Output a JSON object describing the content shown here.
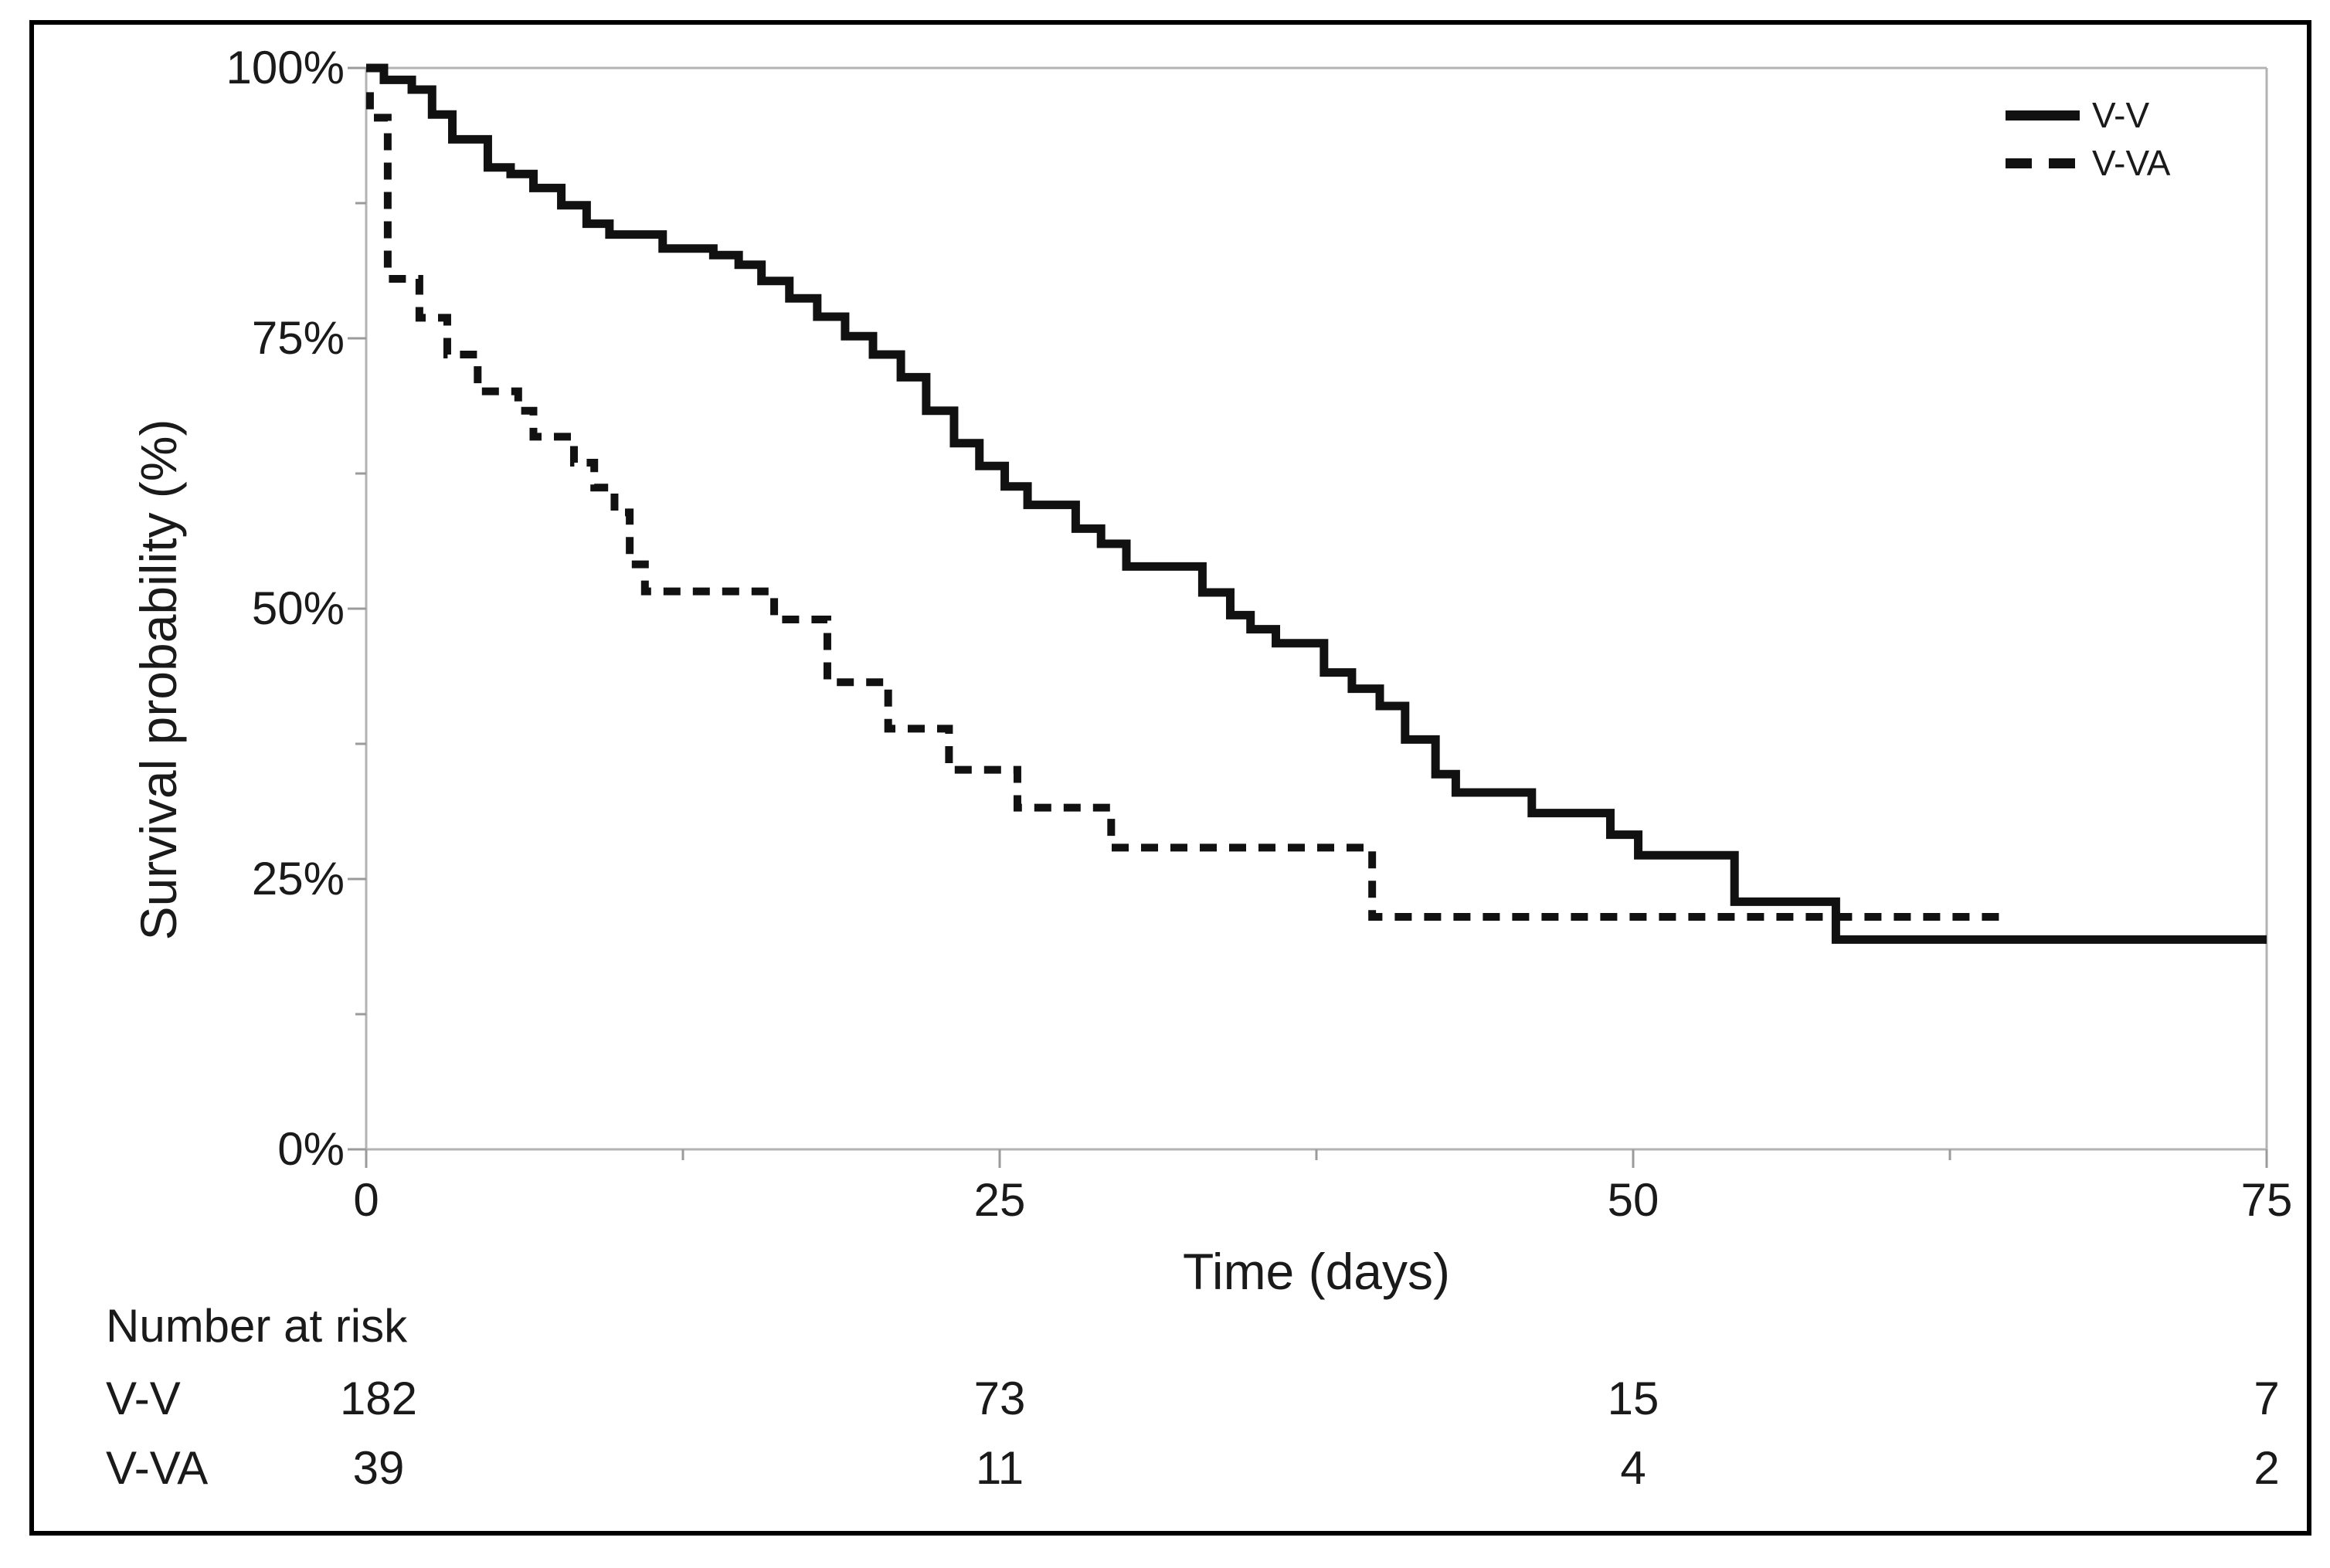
{
  "figure": {
    "background_color": "#ffffff",
    "border_color": "#000000",
    "text_color": "#1a1a1a",
    "axis_color": "#b3b3b3",
    "tick_color": "#9b9b9b",
    "curve_color": "#111111"
  },
  "chart_data": {
    "type": "line",
    "subtype": "kaplan-meier-step",
    "title": "",
    "xlabel": "Time (days)",
    "ylabel": "Survival probability (%)",
    "xlim": [
      0,
      75
    ],
    "ylim": [
      0,
      100
    ],
    "x_ticks": [
      0,
      25,
      50,
      75
    ],
    "x_tick_labels": [
      "0",
      "25",
      "50",
      "75"
    ],
    "x_minor_ticks": [
      12.5,
      37.5,
      62.5
    ],
    "y_ticks": [
      0,
      25,
      50,
      75,
      100
    ],
    "y_tick_labels": [
      "0%",
      "25%",
      "50%",
      "75%",
      "100%"
    ],
    "y_minor_ticks": [
      12.5,
      37.5,
      62.5,
      87.5
    ],
    "grid": "top gridline only, plot framed top/right, no inner grid",
    "legend_position": "top-right",
    "series": [
      {
        "name": "V-V",
        "style": "solid",
        "points": [
          [
            0,
            100
          ],
          [
            0.7,
            98.9
          ],
          [
            1.8,
            98.0
          ],
          [
            2.6,
            95.7
          ],
          [
            3.4,
            93.4
          ],
          [
            4.8,
            90.8
          ],
          [
            5.7,
            90.2
          ],
          [
            6.6,
            88.9
          ],
          [
            7.7,
            87.3
          ],
          [
            8.7,
            85.6
          ],
          [
            9.6,
            84.6
          ],
          [
            11.7,
            83.3
          ],
          [
            13.7,
            82.7
          ],
          [
            14.7,
            81.8
          ],
          [
            15.6,
            80.3
          ],
          [
            16.7,
            78.7
          ],
          [
            17.8,
            77.0
          ],
          [
            18.9,
            75.2
          ],
          [
            20.0,
            73.5
          ],
          [
            21.1,
            71.4
          ],
          [
            22.1,
            68.3
          ],
          [
            23.2,
            65.3
          ],
          [
            24.2,
            63.2
          ],
          [
            25.2,
            61.3
          ],
          [
            26.1,
            59.6
          ],
          [
            28.0,
            57.4
          ],
          [
            29.0,
            56.0
          ],
          [
            30.0,
            53.9
          ],
          [
            33.0,
            51.5
          ],
          [
            34.1,
            49.4
          ],
          [
            34.9,
            48.1
          ],
          [
            35.9,
            46.8
          ],
          [
            37.8,
            44.1
          ],
          [
            38.9,
            42.6
          ],
          [
            40.0,
            41.0
          ],
          [
            41.0,
            37.9
          ],
          [
            42.2,
            34.7
          ],
          [
            43.0,
            33.0
          ],
          [
            46.0,
            31.1
          ],
          [
            49.1,
            29.1
          ],
          [
            50.2,
            27.2
          ],
          [
            54.0,
            22.9
          ],
          [
            58.0,
            19.4
          ],
          [
            75,
            19.4
          ]
        ]
      },
      {
        "name": "V-VA",
        "style": "dashed",
        "points": [
          [
            0,
            97.4
          ],
          [
            0.15,
            95.4
          ],
          [
            0.85,
            80.5
          ],
          [
            2.1,
            76.9
          ],
          [
            3.2,
            73.5
          ],
          [
            4.4,
            70.1
          ],
          [
            6.0,
            68.3
          ],
          [
            6.6,
            65.9
          ],
          [
            8.2,
            63.5
          ],
          [
            9.0,
            61.2
          ],
          [
            9.8,
            58.9
          ],
          [
            10.4,
            54.1
          ],
          [
            11.0,
            51.6
          ],
          [
            16.1,
            49.0
          ],
          [
            18.2,
            43.2
          ],
          [
            20.6,
            38.9
          ],
          [
            23.0,
            35.1
          ],
          [
            25.7,
            31.6
          ],
          [
            29.4,
            27.9
          ],
          [
            39.7,
            21.5
          ],
          [
            64.8,
            21.5
          ]
        ]
      }
    ]
  },
  "legend": {
    "entries": [
      {
        "label": "V-V",
        "style": "solid"
      },
      {
        "label": "V-VA",
        "style": "dashed"
      }
    ]
  },
  "at_risk": {
    "header": "Number at risk",
    "time_points": [
      0,
      25,
      50,
      75
    ],
    "rows": [
      {
        "label": "V-V",
        "values": [
          "182",
          "73",
          "15",
          "7"
        ]
      },
      {
        "label": "V-VA",
        "values": [
          "39",
          "11",
          "4",
          "2"
        ]
      }
    ]
  }
}
